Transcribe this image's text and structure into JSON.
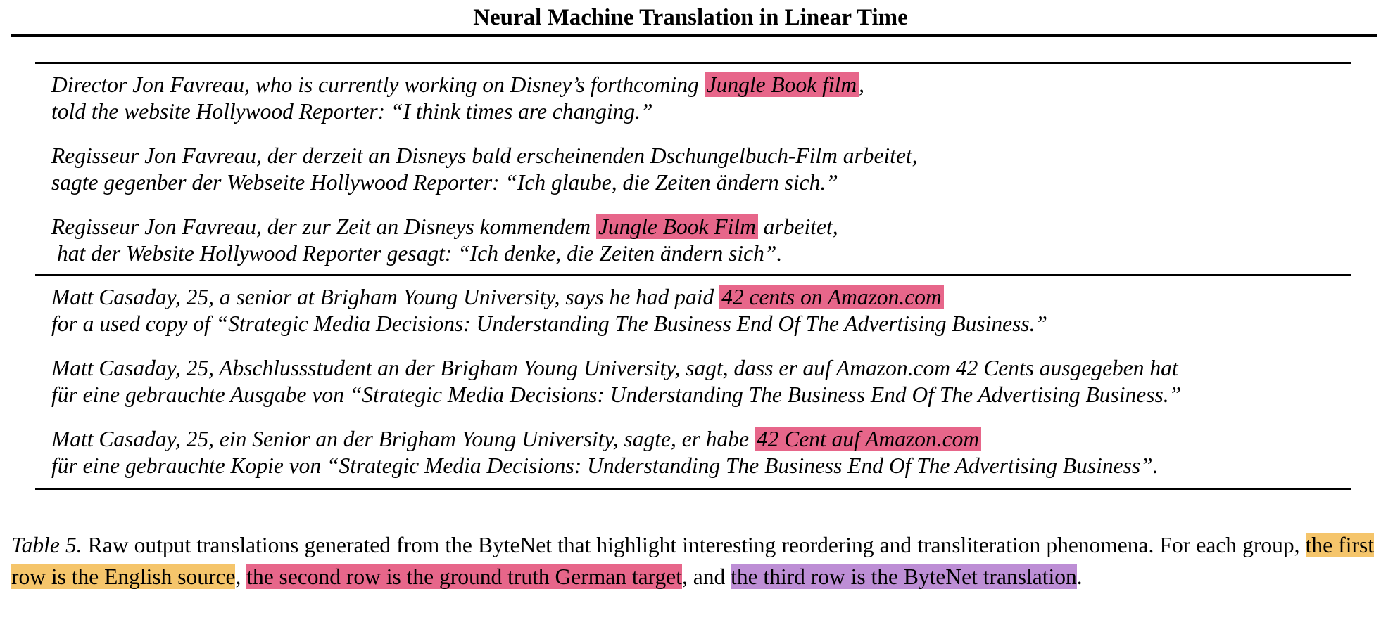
{
  "header": {
    "title": "Neural Machine Translation in Linear Time"
  },
  "highlight_colors": {
    "source": "#f5c56b",
    "target": "#e7668a",
    "bytenet": "#bd8ed5",
    "in_table": "#e7668a"
  },
  "table": {
    "groups": [
      {
        "english": {
          "line1_pre": "Director Jon Favreau, who is currently working on Disney’s forthcoming ",
          "line1_hl": "Jungle Book film",
          "line1_post": ",",
          "line2": "told the website Hollywood Reporter: “I think times are changing.”"
        },
        "german_target": {
          "line1": "Regisseur Jon Favreau, der derzeit an Disneys bald erscheinenden Dschungelbuch-Film arbeitet,",
          "line2": "sagte gegenber der Webseite Hollywood Reporter: “Ich glaube, die Zeiten ändern sich.”"
        },
        "bytenet": {
          "line1_pre": "Regisseur Jon Favreau, der zur Zeit an Disneys kommendem ",
          "line1_hl": "Jungle Book Film",
          "line1_post": " arbeitet,",
          "line2": "hat der Website Hollywood Reporter gesagt: “Ich denke, die Zeiten ändern sich”."
        }
      },
      {
        "english": {
          "line1_pre": "Matt Casaday, 25, a senior at Brigham Young University, says he had paid ",
          "line1_hl": "42 cents on Amazon.com",
          "line1_post": "",
          "line2": "for a used copy of “Strategic Media Decisions: Understanding The Business End Of The Advertising Business.”"
        },
        "german_target": {
          "line1": "Matt Casaday, 25, Abschlussstudent an der Brigham Young University, sagt, dass er auf Amazon.com 42 Cents ausgegeben hat",
          "line2": "für eine gebrauchte Ausgabe von “Strategic Media Decisions: Understanding The Business End Of The Advertising Business.”"
        },
        "bytenet": {
          "line1_pre": "Matt Casaday, 25, ein Senior an der Brigham Young University, sagte, er habe ",
          "line1_hl": "42 Cent auf Amazon.com",
          "line1_post": "",
          "line2": "für eine gebrauchte Kopie von “Strategic Media Decisions: Understanding The Business End Of The Advertising Business”."
        }
      }
    ]
  },
  "caption": {
    "label": "Table 5.",
    "text1": " Raw output translations generated from the ByteNet that highlight interesting reordering and transliteration phenomena. For each group, ",
    "hl_source": "the first row is the English source",
    "sep1": ", ",
    "hl_target": "the second row is the ground truth German target",
    "sep2": ", and ",
    "hl_bytenet": "the third row is the ByteNet translation",
    "end": "."
  }
}
